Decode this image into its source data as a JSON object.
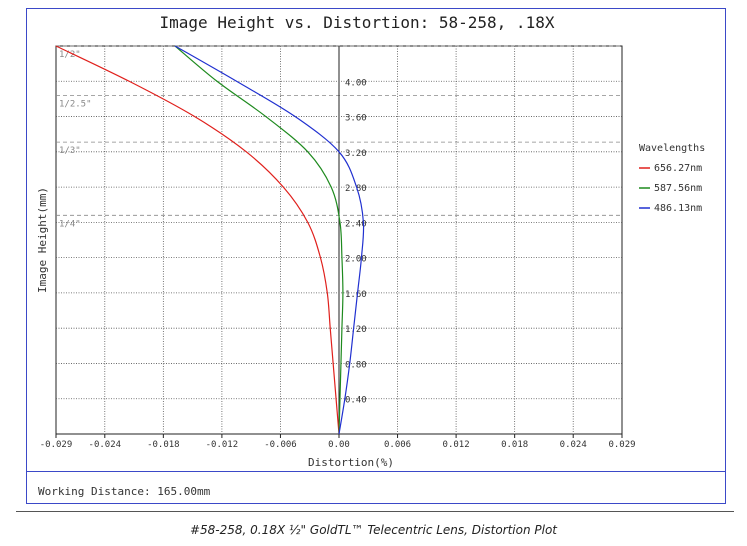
{
  "chart_data": {
    "type": "line",
    "title": "Image Height vs. Distortion: 58-258, .18X",
    "xlabel": "Distortion(%)",
    "ylabel": "Image Height(mm)",
    "xlim": [
      -0.029,
      0.029
    ],
    "ylim": [
      0,
      4.4
    ],
    "x_ticks": [
      "-0.029",
      "-0.024",
      "-0.018",
      "-0.012",
      "-0.006",
      "0.00",
      "0.006",
      "0.012",
      "0.018",
      "0.024",
      "0.029"
    ],
    "x_tick_values": [
      -0.029,
      -0.024,
      -0.018,
      -0.012,
      -0.006,
      0.0,
      0.006,
      0.012,
      0.018,
      0.024,
      0.029
    ],
    "y_ticks": [
      "0.40",
      "0.80",
      "1.20",
      "1.60",
      "2.00",
      "2.40",
      "2.80",
      "3.20",
      "3.60",
      "4.00"
    ],
    "y_tick_values": [
      0.4,
      0.8,
      1.2,
      1.6,
      2.0,
      2.4,
      2.8,
      3.2,
      3.6,
      4.0
    ],
    "grid": true,
    "legend": {
      "title": "Wavelengths",
      "placement": "right"
    },
    "sensor_formats": [
      {
        "label": "1/2\"",
        "height": 4.4
      },
      {
        "label": "1/2.5\"",
        "height": 3.84
      },
      {
        "label": "1/3\"",
        "height": 3.31
      },
      {
        "label": "1/4\"",
        "height": 2.48
      }
    ],
    "series": [
      {
        "name": "656.27nm",
        "color": "#e0201c",
        "points": [
          [
            0.0,
            0.0
          ],
          [
            -0.0003,
            0.4
          ],
          [
            -0.0006,
            0.8
          ],
          [
            -0.0009,
            1.2
          ],
          [
            -0.0012,
            1.6
          ],
          [
            -0.0019,
            2.0
          ],
          [
            -0.0032,
            2.4
          ],
          [
            -0.0057,
            2.8
          ],
          [
            -0.0095,
            3.2
          ],
          [
            -0.0148,
            3.6
          ],
          [
            -0.0215,
            4.0
          ],
          [
            -0.029,
            4.4
          ]
        ]
      },
      {
        "name": "587.56nm",
        "color": "#1e8a1e",
        "points": [
          [
            0.0,
            0.0
          ],
          [
            0.0001,
            0.4
          ],
          [
            0.0002,
            0.8
          ],
          [
            0.0003,
            1.2
          ],
          [
            0.0004,
            1.6
          ],
          [
            0.0003,
            2.0
          ],
          [
            0.0001,
            2.4
          ],
          [
            -0.0008,
            2.8
          ],
          [
            -0.0032,
            3.2
          ],
          [
            -0.0075,
            3.6
          ],
          [
            -0.0125,
            4.0
          ],
          [
            -0.0168,
            4.4
          ]
        ]
      },
      {
        "name": "486.13nm",
        "color": "#2030d0",
        "points": [
          [
            0.0,
            0.0
          ],
          [
            0.0006,
            0.4
          ],
          [
            0.0011,
            0.8
          ],
          [
            0.0015,
            1.2
          ],
          [
            0.0019,
            1.6
          ],
          [
            0.0023,
            2.0
          ],
          [
            0.0025,
            2.4
          ],
          [
            0.0018,
            2.8
          ],
          [
            0.0,
            3.2
          ],
          [
            -0.0045,
            3.6
          ],
          [
            -0.0105,
            4.0
          ],
          [
            -0.0168,
            4.4
          ]
        ]
      }
    ]
  },
  "footer": {
    "working_distance": "Working Distance: 165.00mm",
    "caption": "#58-258, 0.18X ½\" GoldTL™ Telecentric Lens, Distortion Plot"
  }
}
